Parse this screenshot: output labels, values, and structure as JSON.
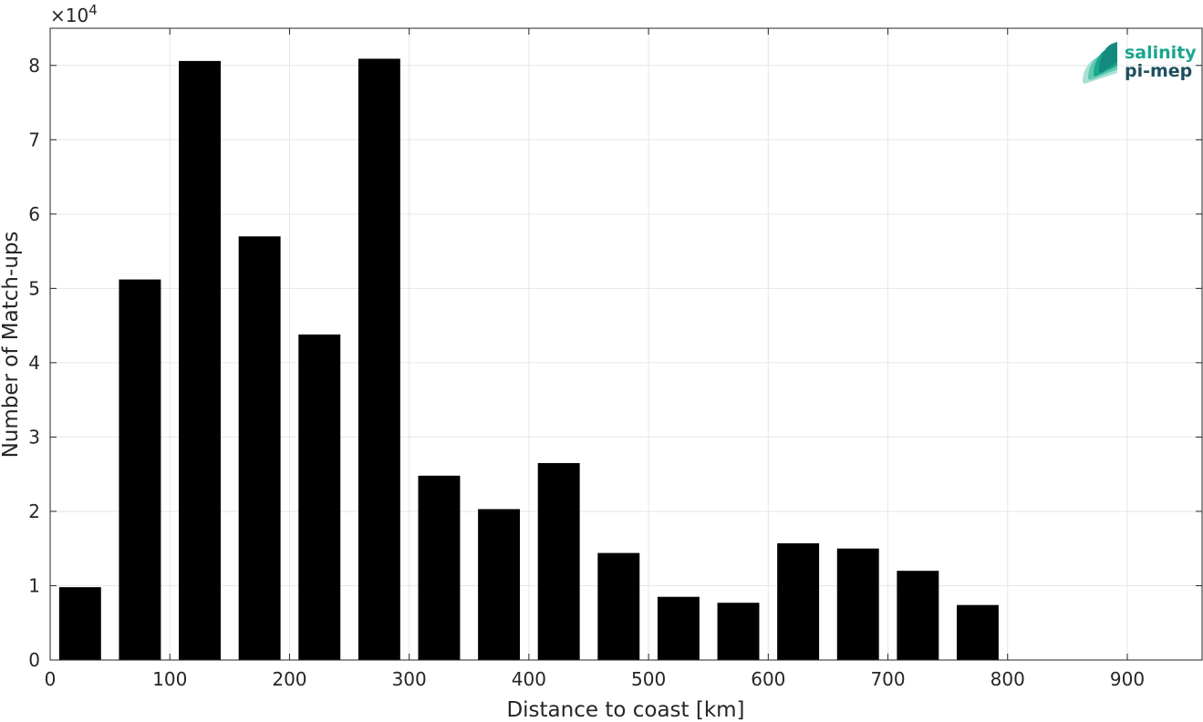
{
  "chart_data": {
    "type": "bar",
    "xlabel": "Distance to coast [km]",
    "ylabel": "Number of Match-ups",
    "y_exponent_label": "×10",
    "y_exponent_power": "4",
    "y_multiplier": 10000,
    "xlim": [
      0,
      962.5
    ],
    "ylim": [
      0,
      85000
    ],
    "grid": true,
    "x_ticks": [
      0,
      100,
      200,
      300,
      400,
      500,
      600,
      700,
      800,
      900
    ],
    "y_ticks": [
      0,
      1,
      2,
      3,
      4,
      5,
      6,
      7,
      8
    ],
    "bar_width_km": 35,
    "bar_color": "#000000",
    "categories": [
      25,
      75,
      125,
      175,
      225,
      275,
      325,
      375,
      425,
      475,
      525,
      575,
      625,
      675,
      725,
      775,
      825,
      875,
      925
    ],
    "values": [
      9800,
      51200,
      80600,
      57000,
      43800,
      80900,
      24800,
      20300,
      26500,
      14400,
      8500,
      7700,
      15700,
      15000,
      12000,
      7400,
      0,
      0,
      0
    ]
  },
  "logo": {
    "line1": "salinity",
    "line2": "pi-mep",
    "color1": "#1aa68f",
    "color2": "#1d4f5e"
  }
}
